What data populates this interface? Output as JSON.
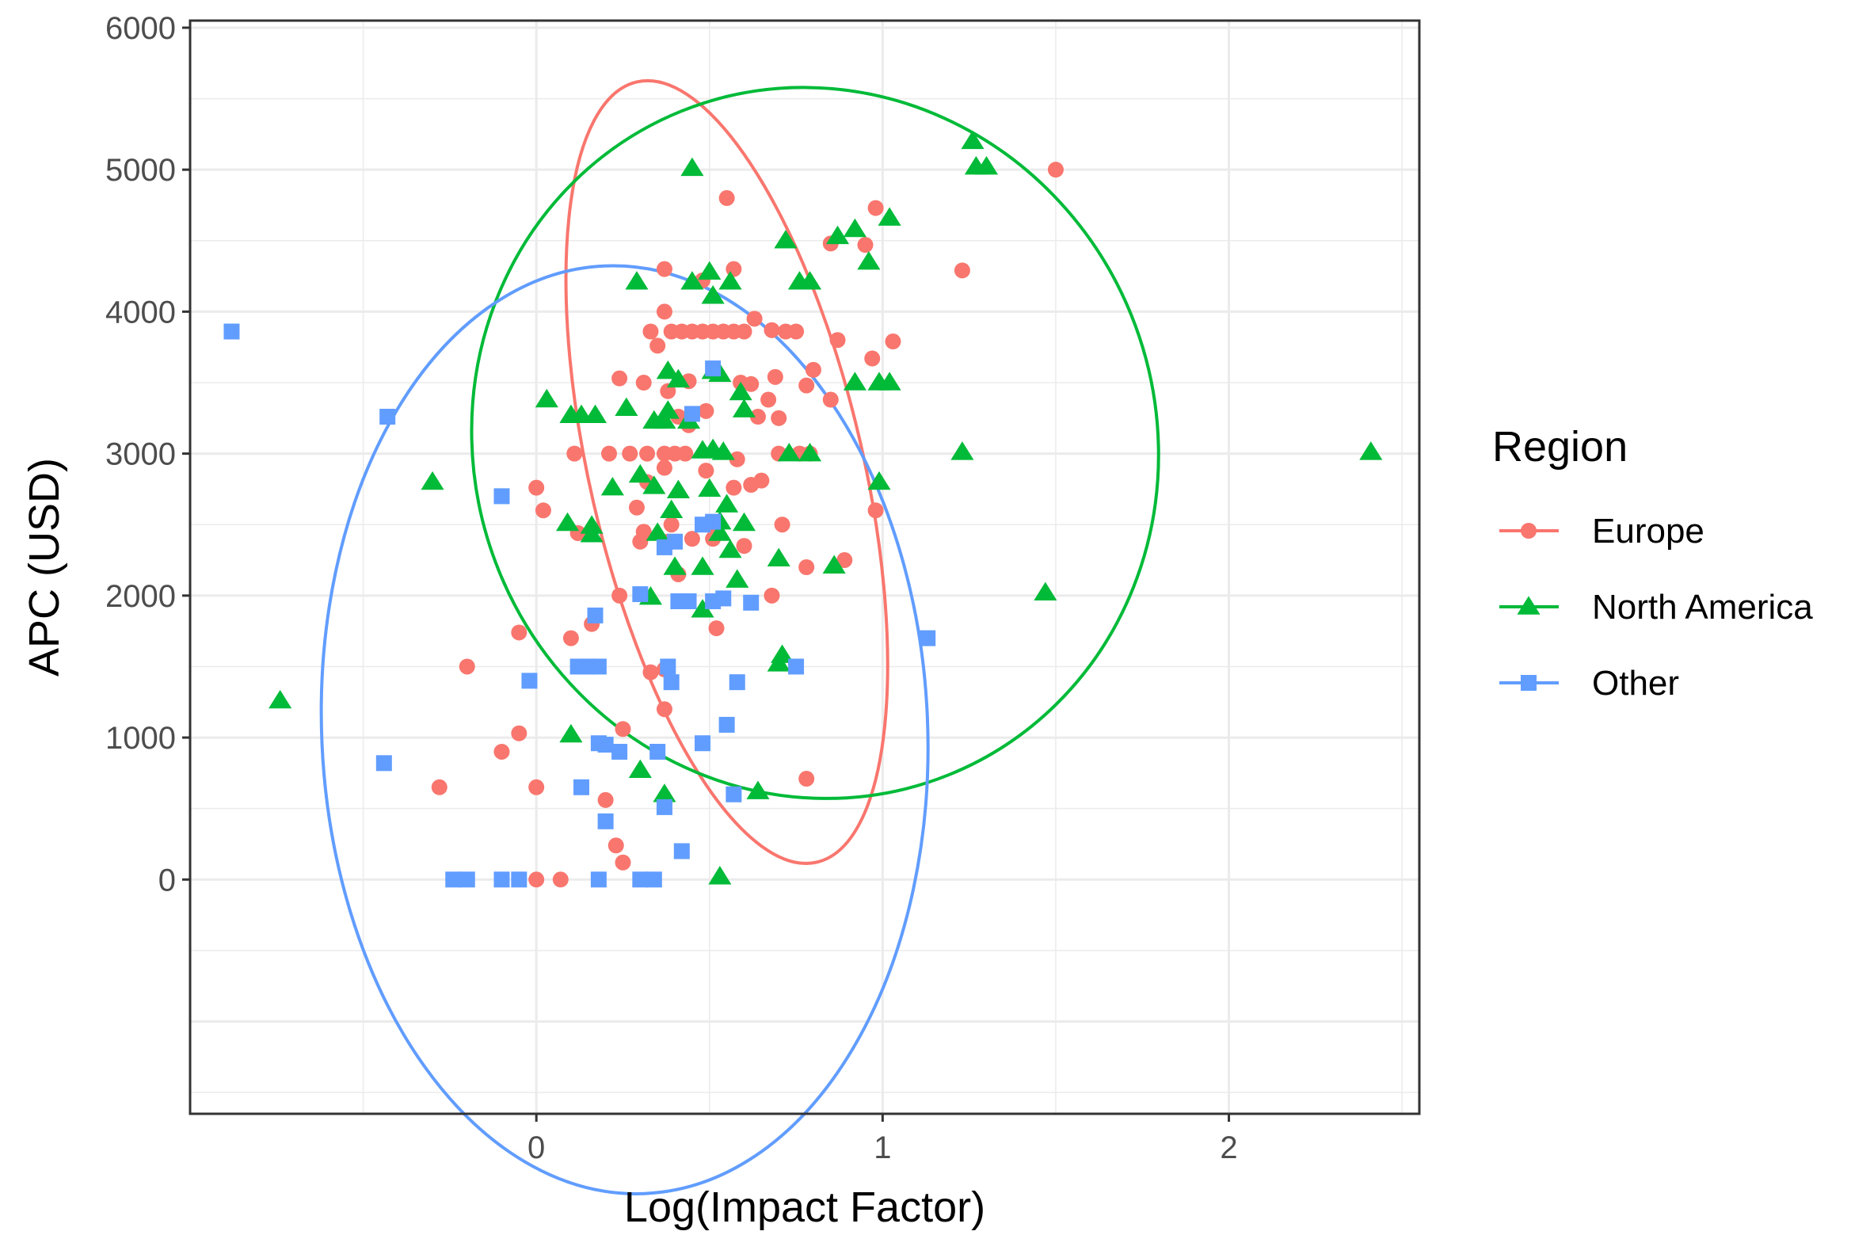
{
  "chart_data": {
    "type": "scatter",
    "title": "",
    "xlabel": "Log(Impact Factor)",
    "ylabel": "APC (USD)",
    "xlim": [
      -1.0,
      2.55
    ],
    "ylim": [
      -1650,
      6050
    ],
    "x_ticks": [
      0,
      1,
      2
    ],
    "x_tick_labels": [
      "0",
      "1",
      "2"
    ],
    "y_ticks": [
      0,
      1000,
      2000,
      3000,
      4000,
      5000,
      6000
    ],
    "y_tick_labels": [
      "0",
      "1000",
      "2000",
      "3000",
      "4000",
      "5000",
      "6000"
    ],
    "grid": true,
    "legend": {
      "title": "Region",
      "position": "right"
    },
    "ellipses": true,
    "series": [
      {
        "name": "Europe",
        "color": "#F8766D",
        "marker": "circle",
        "ellipse": {
          "cx": 0.55,
          "cy": 2870,
          "rx": 0.395,
          "ry": 2820,
          "angle": -13
        },
        "points": [
          [
            1.5,
            5000
          ],
          [
            0.55,
            4800
          ],
          [
            0.98,
            4730
          ],
          [
            0.85,
            4480
          ],
          [
            0.95,
            4470
          ],
          [
            1.23,
            4290
          ],
          [
            0.57,
            4300
          ],
          [
            0.37,
            4300
          ],
          [
            0.48,
            4220
          ],
          [
            0.37,
            4000
          ],
          [
            0.63,
            3950
          ],
          [
            0.68,
            3870
          ],
          [
            0.75,
            3860
          ],
          [
            0.33,
            3860
          ],
          [
            0.39,
            3860
          ],
          [
            0.42,
            3860
          ],
          [
            0.45,
            3860
          ],
          [
            0.48,
            3860
          ],
          [
            0.51,
            3860
          ],
          [
            0.54,
            3860
          ],
          [
            0.57,
            3860
          ],
          [
            0.6,
            3860
          ],
          [
            0.72,
            3860
          ],
          [
            0.35,
            3760
          ],
          [
            0.87,
            3800
          ],
          [
            1.03,
            3790
          ],
          [
            0.97,
            3670
          ],
          [
            0.8,
            3590
          ],
          [
            0.69,
            3540
          ],
          [
            0.24,
            3530
          ],
          [
            0.31,
            3500
          ],
          [
            0.44,
            3510
          ],
          [
            0.59,
            3500
          ],
          [
            0.62,
            3490
          ],
          [
            0.78,
            3480
          ],
          [
            0.38,
            3440
          ],
          [
            0.67,
            3380
          ],
          [
            0.85,
            3380
          ],
          [
            0.49,
            3300
          ],
          [
            0.41,
            3260
          ],
          [
            0.64,
            3260
          ],
          [
            0.7,
            3250
          ],
          [
            0.44,
            3200
          ],
          [
            0.11,
            3000
          ],
          [
            0.21,
            3000
          ],
          [
            0.27,
            3000
          ],
          [
            0.32,
            3000
          ],
          [
            0.37,
            3000
          ],
          [
            0.4,
            3000
          ],
          [
            0.43,
            3000
          ],
          [
            0.58,
            2960
          ],
          [
            0.7,
            3000
          ],
          [
            0.76,
            3000
          ],
          [
            0.79,
            3000
          ],
          [
            0.37,
            2900
          ],
          [
            0.49,
            2880
          ],
          [
            0.65,
            2810
          ],
          [
            0.62,
            2780
          ],
          [
            0.57,
            2760
          ],
          [
            0.32,
            2800
          ],
          [
            0.0,
            2760
          ],
          [
            0.02,
            2600
          ],
          [
            0.29,
            2620
          ],
          [
            0.39,
            2500
          ],
          [
            0.51,
            2500
          ],
          [
            0.71,
            2500
          ],
          [
            0.98,
            2600
          ],
          [
            0.12,
            2440
          ],
          [
            0.31,
            2450
          ],
          [
            0.3,
            2380
          ],
          [
            0.38,
            2380
          ],
          [
            0.45,
            2400
          ],
          [
            0.51,
            2400
          ],
          [
            0.6,
            2350
          ],
          [
            0.89,
            2250
          ],
          [
            0.78,
            2200
          ],
          [
            0.41,
            2150
          ],
          [
            0.24,
            2000
          ],
          [
            0.51,
            1960
          ],
          [
            0.68,
            2000
          ],
          [
            0.16,
            1800
          ],
          [
            0.52,
            1770
          ],
          [
            -0.05,
            1740
          ],
          [
            0.1,
            1700
          ],
          [
            -0.2,
            1500
          ],
          [
            0.33,
            1460
          ],
          [
            0.37,
            1480
          ],
          [
            0.37,
            1200
          ],
          [
            0.25,
            1060
          ],
          [
            -0.05,
            1030
          ],
          [
            -0.1,
            900
          ],
          [
            0.78,
            710
          ],
          [
            -0.28,
            650
          ],
          [
            0.0,
            650
          ],
          [
            0.2,
            560
          ],
          [
            0.23,
            240
          ],
          [
            0.25,
            120
          ],
          [
            0.0,
            0
          ],
          [
            0.07,
            0
          ]
        ]
      },
      {
        "name": "North America",
        "color": "#00BA38",
        "marker": "triangle",
        "ellipse": {
          "cx": 0.805,
          "cy": 3075,
          "rx": 0.985,
          "ry": 2520,
          "angle": -22
        },
        "points": [
          [
            1.26,
            5200
          ],
          [
            1.27,
            5020
          ],
          [
            1.3,
            5020
          ],
          [
            0.45,
            5010
          ],
          [
            1.02,
            4660
          ],
          [
            0.92,
            4580
          ],
          [
            0.87,
            4530
          ],
          [
            0.72,
            4500
          ],
          [
            0.96,
            4350
          ],
          [
            0.5,
            4280
          ],
          [
            0.29,
            4210
          ],
          [
            0.45,
            4210
          ],
          [
            0.56,
            4210
          ],
          [
            0.76,
            4210
          ],
          [
            0.79,
            4210
          ],
          [
            0.51,
            4110
          ],
          [
            0.38,
            3580
          ],
          [
            0.41,
            3520
          ],
          [
            0.51,
            3580
          ],
          [
            0.53,
            3560
          ],
          [
            0.92,
            3500
          ],
          [
            0.99,
            3500
          ],
          [
            1.02,
            3500
          ],
          [
            0.03,
            3380
          ],
          [
            0.26,
            3320
          ],
          [
            0.38,
            3300
          ],
          [
            0.59,
            3430
          ],
          [
            0.6,
            3310
          ],
          [
            0.1,
            3270
          ],
          [
            0.13,
            3270
          ],
          [
            0.17,
            3270
          ],
          [
            0.34,
            3230
          ],
          [
            0.37,
            3230
          ],
          [
            0.44,
            3230
          ],
          [
            1.23,
            3010
          ],
          [
            0.48,
            3020
          ],
          [
            0.51,
            3030
          ],
          [
            0.54,
            3010
          ],
          [
            0.73,
            3000
          ],
          [
            0.79,
            3000
          ],
          [
            2.41,
            3010
          ],
          [
            -0.3,
            2800
          ],
          [
            0.3,
            2850
          ],
          [
            0.22,
            2760
          ],
          [
            0.34,
            2770
          ],
          [
            0.41,
            2740
          ],
          [
            0.5,
            2750
          ],
          [
            0.99,
            2800
          ],
          [
            0.55,
            2640
          ],
          [
            0.39,
            2600
          ],
          [
            0.09,
            2510
          ],
          [
            0.16,
            2490
          ],
          [
            0.6,
            2510
          ],
          [
            0.53,
            2520
          ],
          [
            0.16,
            2430
          ],
          [
            0.35,
            2440
          ],
          [
            0.53,
            2440
          ],
          [
            0.56,
            2320
          ],
          [
            0.7,
            2260
          ],
          [
            0.86,
            2210
          ],
          [
            0.4,
            2200
          ],
          [
            0.48,
            2200
          ],
          [
            0.58,
            2110
          ],
          [
            0.33,
            1990
          ],
          [
            0.48,
            1900
          ],
          [
            0.71,
            1580
          ],
          [
            0.7,
            1520
          ],
          [
            -0.74,
            1260
          ],
          [
            0.1,
            1020
          ],
          [
            0.3,
            770
          ],
          [
            0.37,
            600
          ],
          [
            0.64,
            620
          ],
          [
            0.53,
            20
          ],
          [
            1.47,
            2020
          ]
        ]
      },
      {
        "name": "Other",
        "color": "#619CFF",
        "marker": "square",
        "ellipse": {
          "cx": 0.255,
          "cy": 1055,
          "rx": 0.875,
          "ry": 3270,
          "angle": -2.5
        },
        "points": [
          [
            -0.88,
            3860
          ],
          [
            -0.43,
            3260
          ],
          [
            0.51,
            3600
          ],
          [
            0.45,
            3280
          ],
          [
            -0.1,
            2700
          ],
          [
            0.48,
            2500
          ],
          [
            0.51,
            2520
          ],
          [
            0.4,
            2380
          ],
          [
            0.37,
            2340
          ],
          [
            0.3,
            2010
          ],
          [
            0.41,
            1960
          ],
          [
            0.44,
            1960
          ],
          [
            0.51,
            1960
          ],
          [
            0.54,
            1980
          ],
          [
            0.62,
            1950
          ],
          [
            0.17,
            1860
          ],
          [
            1.13,
            1700
          ],
          [
            0.12,
            1500
          ],
          [
            0.15,
            1500
          ],
          [
            0.18,
            1500
          ],
          [
            0.38,
            1500
          ],
          [
            0.75,
            1500
          ],
          [
            -0.02,
            1400
          ],
          [
            0.39,
            1390
          ],
          [
            0.58,
            1390
          ],
          [
            0.55,
            1090
          ],
          [
            0.18,
            960
          ],
          [
            0.2,
            950
          ],
          [
            0.24,
            900
          ],
          [
            0.35,
            900
          ],
          [
            0.48,
            960
          ],
          [
            -0.44,
            820
          ],
          [
            0.13,
            650
          ],
          [
            0.57,
            600
          ],
          [
            0.37,
            510
          ],
          [
            0.2,
            410
          ],
          [
            0.42,
            200
          ],
          [
            -0.24,
            0
          ],
          [
            -0.2,
            0
          ],
          [
            -0.1,
            0
          ],
          [
            -0.05,
            0
          ],
          [
            0.18,
            0
          ],
          [
            0.3,
            0
          ],
          [
            0.34,
            0
          ]
        ]
      }
    ]
  }
}
